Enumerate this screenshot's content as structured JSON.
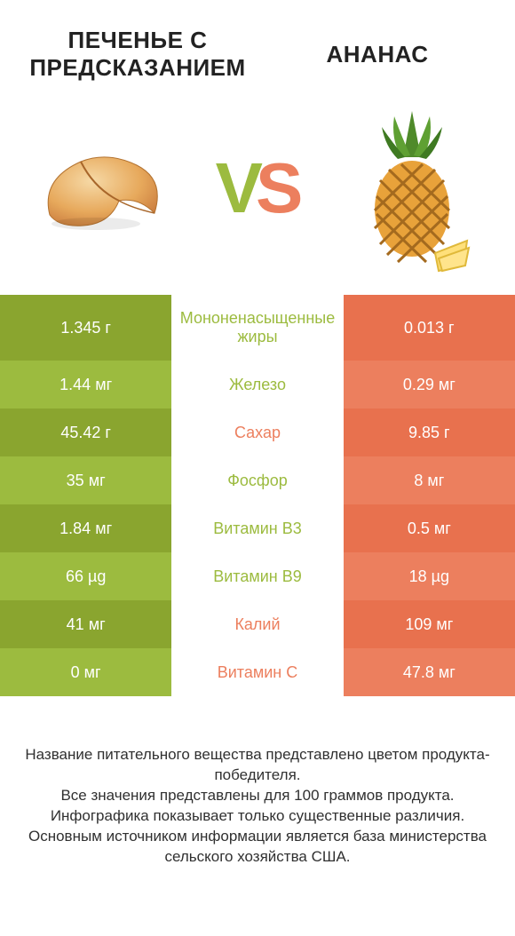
{
  "colors": {
    "left_dark": "#8aa52f",
    "left_light": "#9cbb3f",
    "right_dark": "#e8714e",
    "right_light": "#ec7f5e",
    "text_dark": "#303030"
  },
  "header": {
    "left_title": "ПЕЧЕНЬЕ С ПРЕДСКАЗАНИЕМ",
    "right_title": "АНАНАС",
    "vs_v": "V",
    "vs_s": "S"
  },
  "table": {
    "rows": [
      {
        "left": "1.345 г",
        "name": "Мононенасыщенные жиры",
        "right": "0.013 г",
        "winner": "left",
        "tall": true
      },
      {
        "left": "1.44 мг",
        "name": "Железо",
        "right": "0.29 мг",
        "winner": "left",
        "tall": false
      },
      {
        "left": "45.42 г",
        "name": "Сахар",
        "right": "9.85 г",
        "winner": "right",
        "tall": false
      },
      {
        "left": "35 мг",
        "name": "Фосфор",
        "right": "8 мг",
        "winner": "left",
        "tall": false
      },
      {
        "left": "1.84 мг",
        "name": "Витамин B3",
        "right": "0.5 мг",
        "winner": "left",
        "tall": false
      },
      {
        "left": "66 µg",
        "name": "Витамин B9",
        "right": "18 µg",
        "winner": "left",
        "tall": false
      },
      {
        "left": "41 мг",
        "name": "Калий",
        "right": "109 мг",
        "winner": "right",
        "tall": false
      },
      {
        "left": "0 мг",
        "name": "Витамин C",
        "right": "47.8 мг",
        "winner": "right",
        "tall": false
      }
    ]
  },
  "footer": {
    "text": "Название питательного вещества представлено цветом продукта-победителя.\nВсе значения представлены для 100 граммов продукта.\nИнфографика показывает только существенные различия.\nОсновным источником информации является база министерства сельского хозяйства США."
  }
}
